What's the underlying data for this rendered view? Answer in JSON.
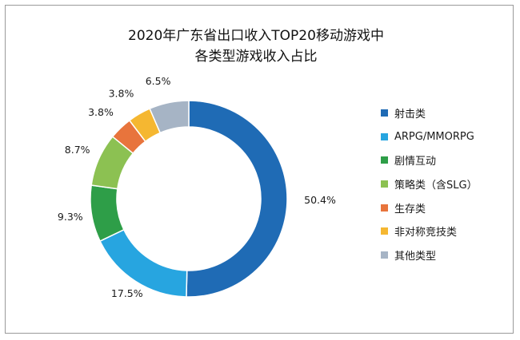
{
  "chart_data": {
    "type": "pie",
    "donut": true,
    "title_lines": [
      "2020年广东省出口收入TOP20移动游戏中",
      "各类型游戏收入占比"
    ],
    "unit": "%",
    "categories": [
      "射击类",
      "ARPG/MMORPG",
      "剧情互动",
      "策略类（含SLG）",
      "生存类",
      "非对称竞技类",
      "其他类型"
    ],
    "values": [
      50.4,
      17.5,
      9.3,
      8.7,
      3.8,
      3.8,
      6.5
    ],
    "labels": [
      "50.4%",
      "17.5%",
      "9.3%",
      "8.7%",
      "3.8%",
      "3.8%",
      "6.5%"
    ],
    "colors": [
      "#1f6bb5",
      "#27a5e0",
      "#2e9e48",
      "#8cc152",
      "#e8743c",
      "#f5b731",
      "#a6b4c5"
    ],
    "legend_position": "right"
  }
}
